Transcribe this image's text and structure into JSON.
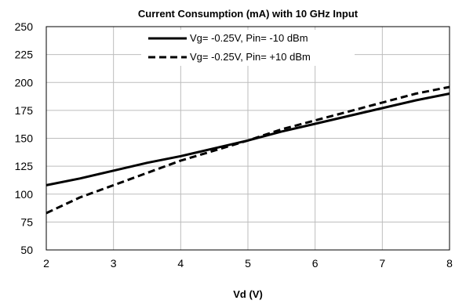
{
  "chart_data": {
    "type": "line",
    "title": "Current Consumption (mA) with 10 GHz Input",
    "xlabel": "Vd (V)",
    "ylabel": "",
    "xlim": [
      2,
      8
    ],
    "ylim": [
      50,
      250
    ],
    "x_ticks": [
      2,
      3,
      4,
      5,
      6,
      7,
      8
    ],
    "y_ticks": [
      50,
      75,
      100,
      125,
      150,
      175,
      200,
      225,
      250
    ],
    "grid": true,
    "legend_position": "top-center",
    "series": [
      {
        "name": "Vg= -0.25V, Pin= -10 dBm",
        "line_style": "solid",
        "color": "#000000",
        "x": [
          2,
          2.5,
          3,
          3.5,
          4,
          4.5,
          5,
          5.5,
          6,
          6.5,
          7,
          7.5,
          8
        ],
        "y": [
          108,
          114,
          121,
          128,
          134,
          141,
          148,
          156,
          163,
          170,
          177,
          184,
          190
        ]
      },
      {
        "name": "Vg= -0.25V, Pin= +10 dBm",
        "line_style": "dashed",
        "color": "#000000",
        "x": [
          2,
          2.5,
          3,
          3.5,
          4,
          4.5,
          5,
          5.5,
          6,
          6.5,
          7,
          7.5,
          8
        ],
        "y": [
          83,
          97,
          108,
          119,
          130,
          139,
          148,
          158,
          166,
          174,
          182,
          190,
          196
        ]
      }
    ]
  }
}
